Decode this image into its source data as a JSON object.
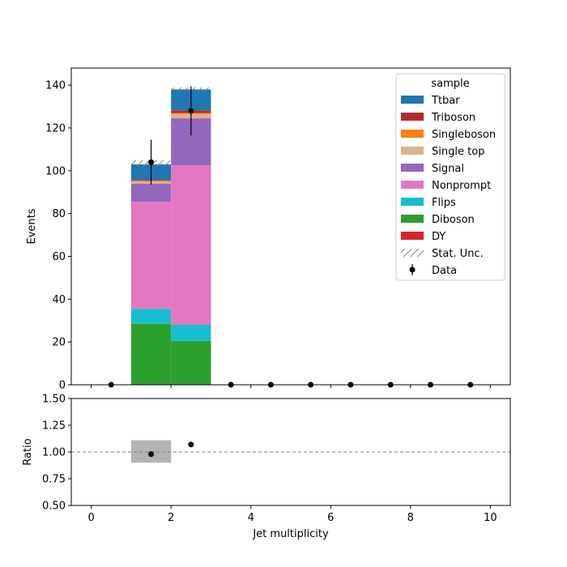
{
  "chart_data": {
    "type": "bar",
    "stacked": true,
    "xlabel": "Jet multiplicity",
    "ylabel": "Events",
    "ratio_ylabel": "Ratio",
    "xlim": [
      -0.5,
      10.5
    ],
    "ylim": [
      0,
      148
    ],
    "ratio_ylim": [
      0.5,
      1.5
    ],
    "x_ticks": [
      0,
      2,
      4,
      6,
      8,
      10
    ],
    "y_ticks": [
      0,
      20,
      40,
      60,
      80,
      100,
      120,
      140
    ],
    "ratio_y_ticks": [
      "0.50",
      "0.75",
      "1.00",
      "1.25",
      "1.50"
    ],
    "ratio_reference": 1.0,
    "legend": {
      "title": "sample",
      "position": "top-right"
    },
    "bin_edges": [
      1,
      2,
      3
    ],
    "series": [
      {
        "name": "DY",
        "color": "#d62728",
        "values": [
          0,
          0
        ]
      },
      {
        "name": "Diboson",
        "color": "#2ca02c",
        "values": [
          28.5,
          20.5
        ]
      },
      {
        "name": "Flips",
        "color": "#17becf",
        "values": [
          7,
          7.5
        ]
      },
      {
        "name": "Nonprompt",
        "color": "#e377c2",
        "values": [
          50,
          74.5
        ]
      },
      {
        "name": "Signal",
        "color": "#9467bd",
        "values": [
          8.5,
          22
        ]
      },
      {
        "name": "Single top",
        "color": "#dbb38a",
        "values": [
          1,
          2
        ]
      },
      {
        "name": "Singleboson",
        "color": "#ff7f0e",
        "values": [
          0.3,
          0.5
        ]
      },
      {
        "name": "Triboson",
        "color": "#b22c2c",
        "values": [
          0.4,
          1.2
        ]
      },
      {
        "name": "Ttbar",
        "color": "#1f77b4",
        "values": [
          7.3,
          9.8
        ]
      }
    ],
    "stat_unc": {
      "name": "Stat. Unc.",
      "bins": [
        {
          "center": 1.5,
          "low": 102,
          "high": 105
        },
        {
          "center": 2.5,
          "low": 137,
          "high": 139
        }
      ]
    },
    "data": {
      "name": "Data",
      "x": [
        0.5,
        1.5,
        2.5,
        3.5,
        4.5,
        5.5,
        6.5,
        7.5,
        8.5,
        9.5
      ],
      "y": [
        0,
        104,
        128,
        0,
        0,
        0,
        0,
        0,
        0,
        0
      ],
      "yerr": [
        0,
        10.5,
        11.5,
        0,
        0,
        0,
        0,
        0,
        0,
        0
      ]
    },
    "ratio": {
      "points": [
        {
          "x": 1.5,
          "y": 0.98
        },
        {
          "x": 2.5,
          "y": 1.07
        }
      ],
      "unc_band": [
        {
          "x0": 1,
          "x1": 2,
          "low": 0.9,
          "high": 1.11
        }
      ]
    }
  }
}
